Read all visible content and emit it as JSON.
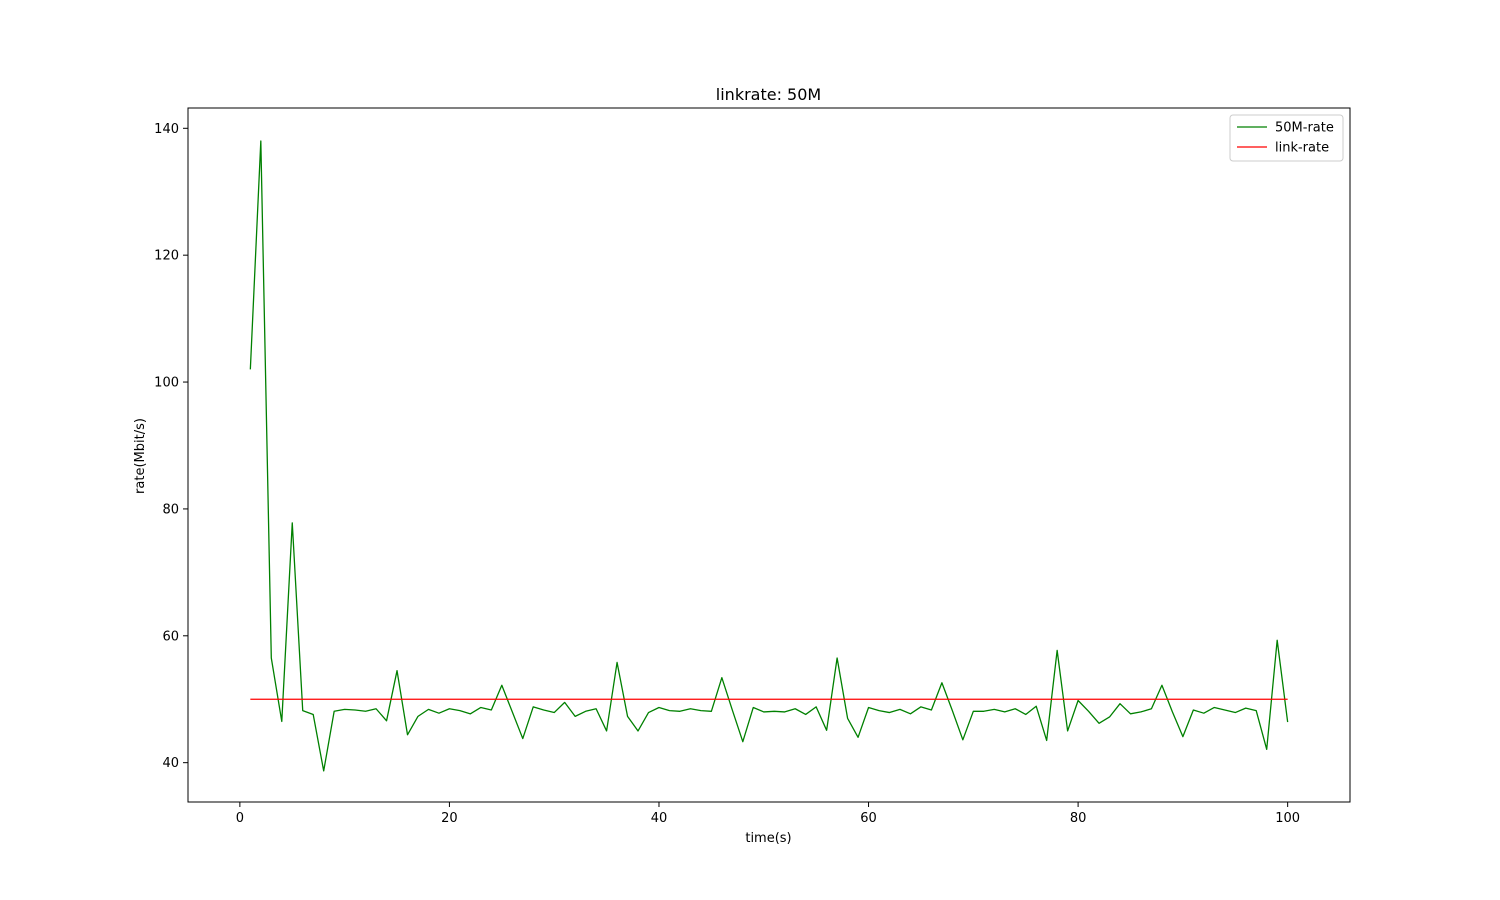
{
  "chart_data": {
    "type": "line",
    "title": "linkrate: 50M",
    "xlabel": "time(s)",
    "ylabel": "rate(Mbit/s)",
    "xlim": [
      -4.95,
      105.95
    ],
    "ylim": [
      33.8,
      143.2
    ],
    "xticks": [
      0,
      20,
      40,
      60,
      80,
      100
    ],
    "yticks": [
      40,
      60,
      80,
      100,
      120,
      140
    ],
    "grid": false,
    "legend_position": "top-right",
    "series": [
      {
        "name": "50M-rate",
        "color": "#008000",
        "x": [
          1,
          2,
          3,
          4,
          5,
          6,
          7,
          8,
          9,
          10,
          11,
          12,
          13,
          14,
          15,
          16,
          17,
          18,
          19,
          20,
          21,
          22,
          23,
          24,
          25,
          26,
          27,
          28,
          29,
          30,
          31,
          32,
          33,
          34,
          35,
          36,
          37,
          38,
          39,
          40,
          41,
          42,
          43,
          44,
          45,
          46,
          47,
          48,
          49,
          50,
          51,
          52,
          53,
          54,
          55,
          56,
          57,
          58,
          59,
          60,
          61,
          62,
          63,
          64,
          65,
          66,
          67,
          68,
          69,
          70,
          71,
          72,
          73,
          74,
          75,
          76,
          77,
          78,
          79,
          80,
          81,
          82,
          83,
          84,
          85,
          86,
          87,
          88,
          89,
          90,
          91,
          92,
          93,
          94,
          95,
          96,
          97,
          98,
          99,
          100
        ],
        "y": [
          102.0,
          138.0,
          56.5,
          46.5,
          77.8,
          48.2,
          47.6,
          38.7,
          48.1,
          48.4,
          48.3,
          48.1,
          48.5,
          46.6,
          54.5,
          44.4,
          47.3,
          48.4,
          47.8,
          48.5,
          48.2,
          47.7,
          48.7,
          48.3,
          52.2,
          48.0,
          43.8,
          48.8,
          48.3,
          47.9,
          49.5,
          47.3,
          48.1,
          48.5,
          45.0,
          55.8,
          47.3,
          45.0,
          47.9,
          48.7,
          48.2,
          48.1,
          48.5,
          48.2,
          48.1,
          53.4,
          48.3,
          43.3,
          48.7,
          48.0,
          48.1,
          48.0,
          48.5,
          47.6,
          48.8,
          45.1,
          56.5,
          47.0,
          44.0,
          48.7,
          48.2,
          47.9,
          48.4,
          47.7,
          48.8,
          48.3,
          52.6,
          48.2,
          43.6,
          48.1,
          48.1,
          48.4,
          48.0,
          48.5,
          47.6,
          48.9,
          43.5,
          57.7,
          45.0,
          49.8,
          48.1,
          46.2,
          47.2,
          49.3,
          47.7,
          48.0,
          48.5,
          52.2,
          48.0,
          44.1,
          48.3,
          47.8,
          48.7,
          48.3,
          47.9,
          48.6,
          48.2,
          42.1,
          59.3,
          46.4
        ]
      },
      {
        "name": "link-rate",
        "color": "#ff0000",
        "x": [
          1,
          100
        ],
        "y": [
          50,
          50
        ]
      }
    ]
  }
}
